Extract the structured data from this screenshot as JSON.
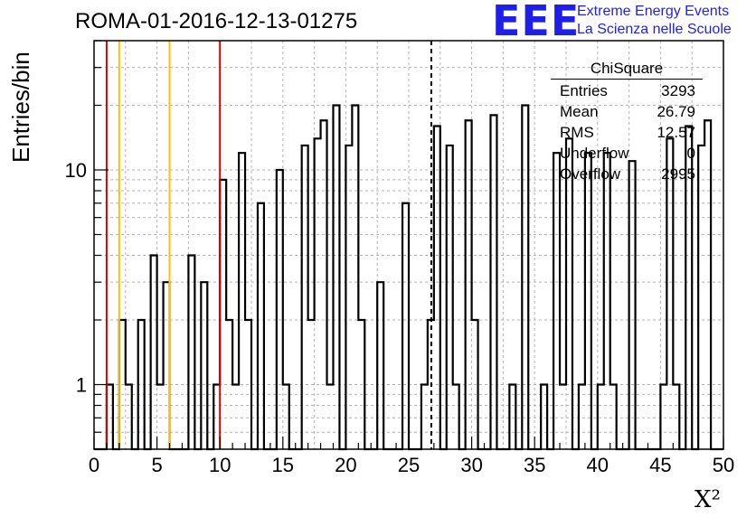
{
  "title": "ROMA-01-2016-12-13-01275",
  "logo": {
    "mark": "EEE",
    "line1": "Extreme Energy Events",
    "line2": "La Scienza nelle Scuole"
  },
  "chart_data": {
    "type": "bar",
    "histogram": true,
    "title": "ROMA-01-2016-12-13-01275",
    "xlabel": "X²",
    "ylabel": "Entries/bin",
    "x_scale": "linear",
    "y_scale": "log",
    "xlim": [
      0,
      50
    ],
    "ylim": [
      0.5,
      40
    ],
    "grid": true,
    "x_ticks": [
      0,
      5,
      10,
      15,
      20,
      25,
      30,
      35,
      40,
      45,
      50
    ],
    "y_tick_labels": [
      "1",
      "10"
    ],
    "bin_width": 0.5,
    "bins": [
      [
        1.0,
        1
      ],
      [
        2.0,
        2
      ],
      [
        2.5,
        1
      ],
      [
        3.5,
        2
      ],
      [
        4.5,
        4
      ],
      [
        5.0,
        1
      ],
      [
        5.5,
        3
      ],
      [
        7.5,
        4
      ],
      [
        8.5,
        3
      ],
      [
        9.5,
        1
      ],
      [
        10.0,
        9
      ],
      [
        10.5,
        2
      ],
      [
        11.0,
        1
      ],
      [
        11.5,
        12
      ],
      [
        12.0,
        2
      ],
      [
        13.0,
        7
      ],
      [
        14.5,
        10
      ],
      [
        15.0,
        1
      ],
      [
        16.5,
        13
      ],
      [
        17.0,
        2
      ],
      [
        17.5,
        14
      ],
      [
        18.0,
        17
      ],
      [
        18.5,
        1
      ],
      [
        19.0,
        20
      ],
      [
        20.0,
        13
      ],
      [
        20.5,
        20
      ],
      [
        21.0,
        2
      ],
      [
        22.5,
        3
      ],
      [
        24.5,
        7
      ],
      [
        26.0,
        1
      ],
      [
        26.5,
        2
      ],
      [
        27.0,
        16
      ],
      [
        28.0,
        13
      ],
      [
        28.5,
        1
      ],
      [
        29.5,
        17
      ],
      [
        30.0,
        2
      ],
      [
        31.5,
        18
      ],
      [
        33.0,
        1
      ],
      [
        34.0,
        20
      ],
      [
        35.5,
        1
      ],
      [
        36.5,
        12
      ],
      [
        37.0,
        1
      ],
      [
        37.5,
        14
      ],
      [
        38.5,
        1
      ],
      [
        39.0,
        12
      ],
      [
        40.0,
        1
      ],
      [
        40.5,
        12
      ],
      [
        41.0,
        1
      ],
      [
        42.5,
        11
      ],
      [
        45.0,
        1
      ],
      [
        45.5,
        14
      ],
      [
        46.0,
        1
      ],
      [
        47.0,
        16
      ],
      [
        48.0,
        13
      ],
      [
        48.5,
        17
      ]
    ],
    "vertical_lines": [
      {
        "x": 1,
        "color": "#e00000",
        "style": "solid"
      },
      {
        "x": 2,
        "color": "#ffc000",
        "style": "solid"
      },
      {
        "x": 6,
        "color": "#ffc000",
        "style": "solid"
      },
      {
        "x": 10,
        "color": "#e00000",
        "style": "solid"
      },
      {
        "x": 26.79,
        "color": "#000000",
        "style": "dashed"
      }
    ]
  },
  "stats": {
    "name": "ChiSquare",
    "rows": [
      {
        "label": "Entries",
        "value": "3293"
      },
      {
        "label": "Mean",
        "value": "26.79"
      },
      {
        "label": "RMS",
        "value": "12.57"
      },
      {
        "label": "Underflow",
        "value": "0"
      },
      {
        "label": "Overflow",
        "value": "2995"
      }
    ]
  },
  "colors": {
    "logo": "#1f1fe8",
    "red_line": "#e00000",
    "yellow_line": "#ffc000"
  }
}
